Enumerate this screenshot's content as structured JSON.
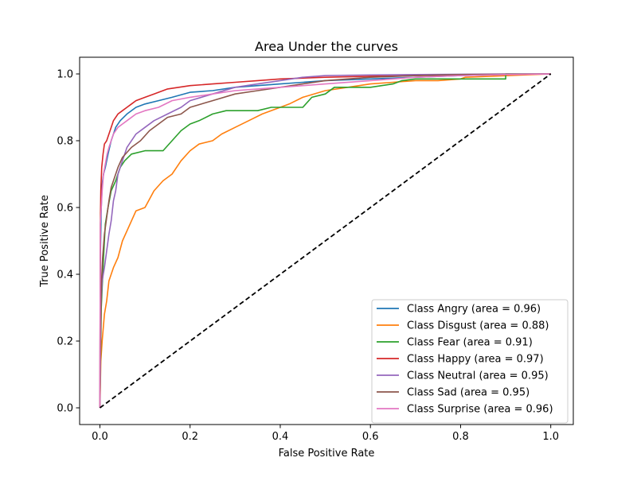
{
  "chart_data": {
    "type": "line",
    "title": "Area Under the curves",
    "xlabel": "False Positive Rate",
    "ylabel": "True Positive Rate",
    "xlim": [
      -0.045,
      1.05
    ],
    "ylim": [
      -0.05,
      1.05
    ],
    "xticks": [
      "0.0",
      "0.2",
      "0.4",
      "0.6",
      "0.8",
      "1.0"
    ],
    "yticks": [
      "0.0",
      "0.2",
      "0.4",
      "0.6",
      "0.8",
      "1.0"
    ],
    "grid": false,
    "legend_position": "lower right",
    "series": [
      {
        "name": "Class Angry (area = 0.96)",
        "color": "#1f77b4",
        "x": [
          0,
          0.001,
          0.003,
          0.005,
          0.008,
          0.012,
          0.018,
          0.025,
          0.035,
          0.045,
          0.06,
          0.08,
          0.1,
          0.13,
          0.16,
          0.2,
          0.25,
          0.3,
          0.35,
          0.4,
          0.45,
          0.5,
          0.6,
          0.7,
          0.8,
          0.9,
          1.0
        ],
        "y": [
          0,
          0.45,
          0.6,
          0.67,
          0.7,
          0.72,
          0.76,
          0.8,
          0.84,
          0.86,
          0.88,
          0.9,
          0.91,
          0.92,
          0.93,
          0.945,
          0.95,
          0.96,
          0.965,
          0.97,
          0.975,
          0.98,
          0.985,
          0.99,
          0.995,
          0.998,
          1.0
        ]
      },
      {
        "name": "Class Disgust (area = 0.88)",
        "color": "#ff7f0e",
        "x": [
          0,
          0.002,
          0.005,
          0.01,
          0.015,
          0.02,
          0.03,
          0.04,
          0.05,
          0.06,
          0.07,
          0.08,
          0.1,
          0.12,
          0.14,
          0.16,
          0.18,
          0.2,
          0.22,
          0.25,
          0.27,
          0.3,
          0.33,
          0.36,
          0.4,
          0.42,
          0.45,
          0.5,
          0.55,
          0.6,
          0.65,
          0.7,
          0.75,
          0.8,
          0.81,
          1.0
        ],
        "y": [
          0,
          0.14,
          0.2,
          0.28,
          0.32,
          0.38,
          0.42,
          0.45,
          0.5,
          0.53,
          0.56,
          0.59,
          0.6,
          0.65,
          0.68,
          0.7,
          0.74,
          0.77,
          0.79,
          0.8,
          0.82,
          0.84,
          0.86,
          0.88,
          0.9,
          0.91,
          0.93,
          0.95,
          0.96,
          0.97,
          0.975,
          0.98,
          0.98,
          0.985,
          0.99,
          1.0
        ]
      },
      {
        "name": "Class Fear (area = 0.91)",
        "color": "#2ca02c",
        "x": [
          0,
          0.003,
          0.008,
          0.012,
          0.018,
          0.025,
          0.035,
          0.045,
          0.055,
          0.07,
          0.1,
          0.14,
          0.16,
          0.18,
          0.2,
          0.22,
          0.25,
          0.28,
          0.35,
          0.38,
          0.45,
          0.47,
          0.5,
          0.52,
          0.6,
          0.65,
          0.67,
          0.7,
          0.9,
          0.9,
          1.0
        ],
        "y": [
          0,
          0.3,
          0.45,
          0.55,
          0.6,
          0.65,
          0.68,
          0.72,
          0.74,
          0.76,
          0.77,
          0.77,
          0.8,
          0.83,
          0.85,
          0.86,
          0.88,
          0.89,
          0.89,
          0.9,
          0.9,
          0.93,
          0.94,
          0.96,
          0.96,
          0.97,
          0.98,
          0.985,
          0.985,
          1.0,
          1.0
        ]
      },
      {
        "name": "Class Happy (area = 0.97)",
        "color": "#d62728",
        "x": [
          0,
          0.001,
          0.002,
          0.004,
          0.007,
          0.01,
          0.015,
          0.02,
          0.025,
          0.03,
          0.04,
          0.05,
          0.06,
          0.07,
          0.08,
          0.1,
          0.12,
          0.15,
          0.2,
          0.25,
          0.3,
          0.35,
          0.4,
          0.5,
          0.6,
          0.7,
          0.8,
          0.9,
          1.0
        ],
        "y": [
          0,
          0.55,
          0.65,
          0.72,
          0.76,
          0.79,
          0.8,
          0.82,
          0.84,
          0.86,
          0.88,
          0.89,
          0.9,
          0.91,
          0.92,
          0.93,
          0.94,
          0.955,
          0.965,
          0.97,
          0.975,
          0.98,
          0.985,
          0.99,
          0.993,
          0.995,
          0.997,
          0.999,
          1.0
        ]
      },
      {
        "name": "Class Neutral (area = 0.95)",
        "color": "#9467bd",
        "x": [
          0,
          0.002,
          0.005,
          0.01,
          0.015,
          0.02,
          0.025,
          0.03,
          0.035,
          0.04,
          0.05,
          0.06,
          0.08,
          0.1,
          0.12,
          0.15,
          0.18,
          0.2,
          0.25,
          0.3,
          0.35,
          0.4,
          0.45,
          0.5,
          0.6,
          0.7,
          0.8,
          0.9,
          1.0
        ],
        "y": [
          0,
          0.3,
          0.38,
          0.42,
          0.47,
          0.52,
          0.56,
          0.62,
          0.65,
          0.7,
          0.74,
          0.78,
          0.82,
          0.84,
          0.86,
          0.88,
          0.9,
          0.92,
          0.94,
          0.96,
          0.97,
          0.98,
          0.99,
          0.995,
          0.997,
          0.998,
          0.999,
          1.0,
          1.0
        ]
      },
      {
        "name": "Class Sad (area = 0.95)",
        "color": "#8c564b",
        "x": [
          0,
          0.003,
          0.006,
          0.01,
          0.015,
          0.02,
          0.025,
          0.03,
          0.04,
          0.05,
          0.07,
          0.09,
          0.11,
          0.13,
          0.15,
          0.18,
          0.2,
          0.25,
          0.3,
          0.35,
          0.4,
          0.45,
          0.5,
          0.6,
          0.7,
          0.8,
          0.9,
          1.0
        ],
        "y": [
          0,
          0.36,
          0.45,
          0.52,
          0.57,
          0.62,
          0.66,
          0.68,
          0.72,
          0.75,
          0.78,
          0.8,
          0.83,
          0.85,
          0.87,
          0.88,
          0.9,
          0.92,
          0.94,
          0.95,
          0.96,
          0.97,
          0.98,
          0.99,
          0.995,
          0.998,
          0.999,
          1.0
        ]
      },
      {
        "name": "Class Surprise (area = 0.96)",
        "color": "#e377c2",
        "x": [
          0,
          0.001,
          0.003,
          0.005,
          0.008,
          0.012,
          0.016,
          0.02,
          0.025,
          0.03,
          0.04,
          0.05,
          0.06,
          0.08,
          0.1,
          0.13,
          0.16,
          0.2,
          0.25,
          0.3,
          0.35,
          0.4,
          0.45,
          0.5,
          0.6,
          0.7,
          0.8,
          0.9,
          1.0
        ],
        "y": [
          0,
          0.55,
          0.6,
          0.65,
          0.7,
          0.73,
          0.76,
          0.78,
          0.8,
          0.82,
          0.84,
          0.85,
          0.86,
          0.88,
          0.89,
          0.9,
          0.92,
          0.93,
          0.94,
          0.95,
          0.955,
          0.96,
          0.965,
          0.97,
          0.98,
          0.99,
          0.995,
          0.998,
          1.0
        ]
      },
      {
        "name": "",
        "color": "#000000",
        "dashed": true,
        "x": [
          0,
          1.0
        ],
        "y": [
          0,
          1.0
        ]
      }
    ]
  }
}
